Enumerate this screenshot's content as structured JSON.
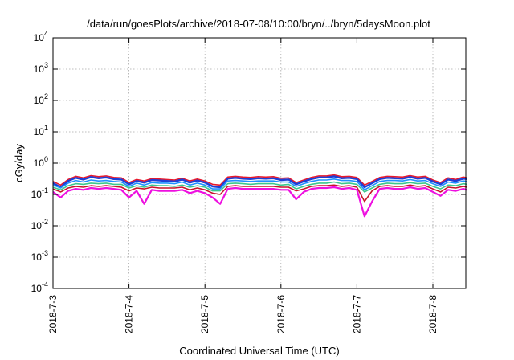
{
  "chart_data": {
    "type": "line",
    "title": "/data/run/goesPlots/archive/2018-07-08/10:00/bryn/../bryn/5daysMoon.plot",
    "xlabel": "Coordinated Universal Time (UTC)",
    "ylabel": "cGy/day",
    "yscale": "log",
    "ylim": [
      0.0001,
      10000
    ],
    "xlim_days": [
      0,
      5.45
    ],
    "grid": true,
    "y_ticks": [
      {
        "base": "10",
        "exp": "-4",
        "value": 0.0001
      },
      {
        "base": "10",
        "exp": "-3",
        "value": 0.001
      },
      {
        "base": "10",
        "exp": "-2",
        "value": 0.01
      },
      {
        "base": "10",
        "exp": "-1",
        "value": 0.1
      },
      {
        "base": "10",
        "exp": "0",
        "value": 1
      },
      {
        "base": "10",
        "exp": "1",
        "value": 10
      },
      {
        "base": "10",
        "exp": "2",
        "value": 100
      },
      {
        "base": "10",
        "exp": "3",
        "value": 1000
      },
      {
        "base": "10",
        "exp": "4",
        "value": 10000
      }
    ],
    "x_ticks": [
      {
        "label": "2018-7-3",
        "day": 0
      },
      {
        "label": "2018-7-4",
        "day": 1
      },
      {
        "label": "2018-7-5",
        "day": 2
      },
      {
        "label": "2018-7-6",
        "day": 3
      },
      {
        "label": "2018-7-7",
        "day": 4
      },
      {
        "label": "2018-7-8",
        "day": 5
      }
    ],
    "series_x_days": [
      0.0,
      0.1,
      0.2,
      0.3,
      0.4,
      0.5,
      0.6,
      0.7,
      0.8,
      0.9,
      1.0,
      1.1,
      1.2,
      1.3,
      1.4,
      1.5,
      1.6,
      1.7,
      1.8,
      1.9,
      2.0,
      2.1,
      2.2,
      2.3,
      2.4,
      2.5,
      2.6,
      2.7,
      2.8,
      2.9,
      3.0,
      3.1,
      3.2,
      3.3,
      3.4,
      3.5,
      3.6,
      3.7,
      3.8,
      3.9,
      4.0,
      4.1,
      4.2,
      4.3,
      4.4,
      4.5,
      4.6,
      4.7,
      4.8,
      4.9,
      5.0,
      5.1,
      5.2,
      5.3,
      5.4,
      5.45
    ],
    "series": [
      {
        "color": "#e8192c",
        "values": [
          0.26,
          0.2,
          0.3,
          0.38,
          0.34,
          0.4,
          0.37,
          0.39,
          0.35,
          0.34,
          0.24,
          0.3,
          0.27,
          0.32,
          0.31,
          0.3,
          0.29,
          0.33,
          0.27,
          0.31,
          0.27,
          0.21,
          0.2,
          0.36,
          0.38,
          0.36,
          0.35,
          0.37,
          0.36,
          0.37,
          0.33,
          0.34,
          0.24,
          0.29,
          0.35,
          0.39,
          0.39,
          0.42,
          0.37,
          0.38,
          0.35,
          0.2,
          0.26,
          0.35,
          0.38,
          0.37,
          0.36,
          0.4,
          0.36,
          0.38,
          0.29,
          0.24,
          0.34,
          0.3,
          0.36,
          0.34
        ]
      },
      {
        "color": "#1d3fd6",
        "values": [
          0.23,
          0.17,
          0.27,
          0.34,
          0.3,
          0.36,
          0.33,
          0.35,
          0.31,
          0.3,
          0.21,
          0.27,
          0.24,
          0.29,
          0.28,
          0.27,
          0.26,
          0.3,
          0.24,
          0.28,
          0.24,
          0.18,
          0.17,
          0.32,
          0.34,
          0.32,
          0.31,
          0.33,
          0.32,
          0.33,
          0.29,
          0.3,
          0.21,
          0.26,
          0.31,
          0.35,
          0.35,
          0.38,
          0.33,
          0.34,
          0.31,
          0.17,
          0.23,
          0.31,
          0.34,
          0.33,
          0.32,
          0.36,
          0.32,
          0.34,
          0.26,
          0.21,
          0.3,
          0.27,
          0.32,
          0.31
        ]
      },
      {
        "color": "#1e90ff",
        "values": [
          0.2,
          0.16,
          0.23,
          0.28,
          0.25,
          0.29,
          0.27,
          0.28,
          0.26,
          0.25,
          0.18,
          0.23,
          0.2,
          0.24,
          0.23,
          0.23,
          0.22,
          0.25,
          0.2,
          0.23,
          0.2,
          0.15,
          0.15,
          0.27,
          0.28,
          0.27,
          0.26,
          0.27,
          0.27,
          0.27,
          0.25,
          0.25,
          0.18,
          0.22,
          0.26,
          0.29,
          0.29,
          0.31,
          0.28,
          0.28,
          0.26,
          0.14,
          0.19,
          0.26,
          0.28,
          0.28,
          0.27,
          0.3,
          0.27,
          0.28,
          0.22,
          0.18,
          0.25,
          0.23,
          0.27,
          0.26
        ]
      },
      {
        "color": "#3cc88c",
        "values": [
          0.17,
          0.14,
          0.19,
          0.22,
          0.21,
          0.23,
          0.22,
          0.23,
          0.21,
          0.21,
          0.16,
          0.19,
          0.17,
          0.2,
          0.19,
          0.19,
          0.18,
          0.2,
          0.17,
          0.19,
          0.17,
          0.13,
          0.13,
          0.22,
          0.23,
          0.22,
          0.21,
          0.22,
          0.22,
          0.22,
          0.2,
          0.21,
          0.15,
          0.18,
          0.21,
          0.23,
          0.23,
          0.25,
          0.22,
          0.23,
          0.21,
          0.12,
          0.16,
          0.21,
          0.23,
          0.22,
          0.22,
          0.24,
          0.22,
          0.23,
          0.18,
          0.15,
          0.2,
          0.19,
          0.22,
          0.21
        ]
      },
      {
        "color": "#c8142a",
        "values": [
          0.15,
          0.12,
          0.16,
          0.18,
          0.17,
          0.19,
          0.18,
          0.19,
          0.18,
          0.17,
          0.13,
          0.16,
          0.15,
          0.17,
          0.16,
          0.16,
          0.16,
          0.17,
          0.14,
          0.16,
          0.14,
          0.11,
          0.1,
          0.18,
          0.19,
          0.18,
          0.18,
          0.18,
          0.18,
          0.18,
          0.17,
          0.17,
          0.13,
          0.15,
          0.18,
          0.19,
          0.19,
          0.2,
          0.18,
          0.19,
          0.17,
          0.06,
          0.13,
          0.18,
          0.19,
          0.18,
          0.18,
          0.2,
          0.18,
          0.19,
          0.15,
          0.12,
          0.17,
          0.16,
          0.18,
          0.17
        ]
      },
      {
        "color": "#ee10e0",
        "values": [
          0.12,
          0.08,
          0.13,
          0.15,
          0.14,
          0.16,
          0.15,
          0.16,
          0.15,
          0.14,
          0.08,
          0.13,
          0.05,
          0.14,
          0.13,
          0.13,
          0.13,
          0.14,
          0.11,
          0.13,
          0.11,
          0.08,
          0.05,
          0.15,
          0.16,
          0.15,
          0.15,
          0.15,
          0.15,
          0.15,
          0.14,
          0.14,
          0.07,
          0.12,
          0.15,
          0.16,
          0.16,
          0.17,
          0.15,
          0.16,
          0.14,
          0.02,
          0.06,
          0.15,
          0.16,
          0.15,
          0.15,
          0.17,
          0.15,
          0.16,
          0.12,
          0.09,
          0.14,
          0.13,
          0.15,
          0.14
        ]
      }
    ]
  }
}
